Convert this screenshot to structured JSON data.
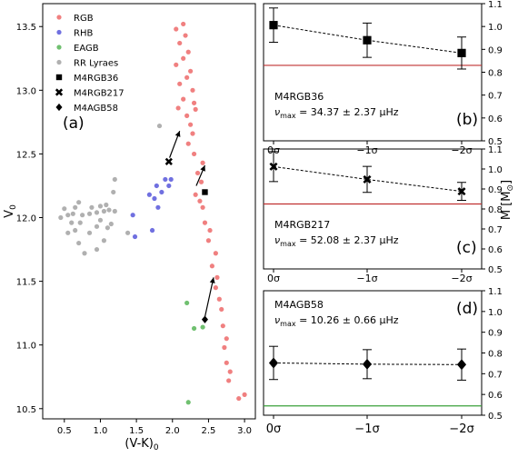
{
  "chart_data": [
    {
      "panel": "(a)",
      "type": "scatter",
      "xlabel": "(V-K)",
      "xlabel_sub": "0",
      "ylabel": "V",
      "ylabel_sub": "0",
      "xlim": [
        0.2,
        3.15
      ],
      "ylim": [
        13.68,
        10.42
      ],
      "y_inverted": true,
      "xticks": [
        0.5,
        1.0,
        1.5,
        2.0,
        2.5,
        3.0
      ],
      "xtick_labels": [
        "0.5",
        "1.0",
        "1.5",
        "2.0",
        "2.5",
        "3.0"
      ],
      "yticks": [
        10.5,
        11.0,
        11.5,
        12.0,
        12.5,
        13.0,
        13.5
      ],
      "ytick_labels": [
        "10.5",
        "11.0",
        "11.5",
        "12.0",
        "12.5",
        "13.0",
        "13.5"
      ],
      "legend_position": "top-left",
      "series": [
        {
          "name": "RGB",
          "marker": "dot",
          "color": "#f08080",
          "points": [
            [
              2.92,
              10.58
            ],
            [
              3.0,
              10.61
            ],
            [
              2.78,
              10.72
            ],
            [
              2.8,
              10.79
            ],
            [
              2.75,
              10.86
            ],
            [
              2.72,
              10.98
            ],
            [
              2.75,
              11.05
            ],
            [
              2.7,
              11.15
            ],
            [
              2.68,
              11.28
            ],
            [
              2.65,
              11.36
            ],
            [
              2.6,
              11.45
            ],
            [
              2.62,
              11.53
            ],
            [
              2.55,
              11.62
            ],
            [
              2.6,
              11.72
            ],
            [
              2.5,
              11.82
            ],
            [
              2.52,
              11.9
            ],
            [
              2.45,
              11.96
            ],
            [
              2.42,
              12.08
            ],
            [
              2.38,
              12.13
            ],
            [
              2.32,
              12.18
            ],
            [
              2.4,
              12.28
            ],
            [
              2.35,
              12.35
            ],
            [
              2.42,
              12.43
            ],
            [
              2.3,
              12.5
            ],
            [
              2.22,
              12.58
            ],
            [
              2.28,
              12.66
            ],
            [
              2.25,
              12.73
            ],
            [
              2.2,
              12.8
            ],
            [
              2.32,
              12.85
            ],
            [
              2.08,
              12.86
            ],
            [
              2.3,
              12.9
            ],
            [
              2.15,
              12.93
            ],
            [
              2.28,
              13.0
            ],
            [
              2.1,
              13.05
            ],
            [
              2.2,
              13.1
            ],
            [
              2.25,
              13.15
            ],
            [
              2.05,
              13.2
            ],
            [
              2.15,
              13.25
            ],
            [
              2.22,
              13.3
            ],
            [
              2.1,
              13.37
            ],
            [
              2.18,
              13.43
            ],
            [
              2.05,
              13.48
            ],
            [
              2.15,
              13.52
            ]
          ]
        },
        {
          "name": "RHB",
          "marker": "dot",
          "color": "#7070e0",
          "points": [
            [
              1.48,
              11.85
            ],
            [
              1.72,
              11.9
            ],
            [
              1.45,
              12.02
            ],
            [
              1.8,
              12.08
            ],
            [
              1.75,
              12.15
            ],
            [
              1.68,
              12.18
            ],
            [
              1.85,
              12.2
            ],
            [
              1.78,
              12.25
            ],
            [
              1.95,
              12.25
            ],
            [
              1.9,
              12.3
            ],
            [
              1.98,
              12.3
            ]
          ]
        },
        {
          "name": "EAGB",
          "marker": "dot",
          "color": "#70c070",
          "points": [
            [
              2.22,
              10.55
            ],
            [
              2.3,
              11.13
            ],
            [
              2.42,
              11.14
            ],
            [
              2.2,
              11.33
            ]
          ]
        },
        {
          "name": "RR Lyraes",
          "marker": "dot",
          "color": "#b0b0b0",
          "points": [
            [
              0.78,
              11.72
            ],
            [
              0.95,
              11.75
            ],
            [
              0.7,
              11.8
            ],
            [
              1.05,
              11.82
            ],
            [
              0.55,
              11.88
            ],
            [
              0.65,
              11.9
            ],
            [
              0.85,
              11.88
            ],
            [
              0.95,
              11.93
            ],
            [
              1.1,
              11.92
            ],
            [
              0.6,
              11.96
            ],
            [
              0.72,
              11.96
            ],
            [
              1.0,
              11.98
            ],
            [
              1.15,
              11.95
            ],
            [
              0.45,
              12.0
            ],
            [
              0.55,
              12.02
            ],
            [
              0.62,
              12.03
            ],
            [
              0.75,
              12.02
            ],
            [
              0.85,
              12.03
            ],
            [
              0.95,
              12.04
            ],
            [
              1.05,
              12.05
            ],
            [
              1.12,
              12.06
            ],
            [
              1.2,
              12.05
            ],
            [
              0.5,
              12.07
            ],
            [
              0.65,
              12.08
            ],
            [
              0.88,
              12.08
            ],
            [
              1.0,
              12.09
            ],
            [
              1.08,
              12.1
            ],
            [
              0.7,
              12.12
            ],
            [
              1.38,
              11.88
            ],
            [
              1.18,
              12.2
            ],
            [
              1.2,
              12.3
            ],
            [
              1.82,
              12.72
            ]
          ]
        },
        {
          "name": "M4RGB36",
          "marker": "square",
          "color": "#000000",
          "points": [
            [
              2.45,
              12.2
            ]
          ]
        },
        {
          "name": "M4RGB217",
          "marker": "cross",
          "color": "#000000",
          "points": [
            [
              1.95,
              12.44
            ]
          ]
        },
        {
          "name": "M4AGB58",
          "marker": "diamond",
          "color": "#000000",
          "points": [
            [
              2.45,
              11.2
            ]
          ]
        }
      ],
      "arrows": [
        {
          "from": [
            2.45,
            11.22
          ],
          "to": [
            2.57,
            11.53
          ]
        },
        {
          "from": [
            2.33,
            12.25
          ],
          "to": [
            2.45,
            12.41
          ]
        },
        {
          "from": [
            1.96,
            12.47
          ],
          "to": [
            2.1,
            12.68
          ]
        }
      ]
    },
    {
      "panel": "(b)",
      "type": "line",
      "star": "M4RGB36",
      "numax_symbol": "ν",
      "numax_sub": "max",
      "numax_value": "= 34.37 ± 2.37 μHz",
      "marker": "square",
      "categories": [
        "0σ",
        "−1σ",
        "−2σ"
      ],
      "values": [
        1.006,
        0.94,
        0.884
      ],
      "errors": [
        0.075,
        0.075,
        0.07
      ],
      "reference_line": {
        "value": 0.83,
        "color": "#c03030"
      },
      "ylim": [
        0.5,
        1.1
      ],
      "yticks": [
        0.5,
        0.6,
        0.7,
        0.8,
        0.9,
        1.0,
        1.1
      ],
      "ytick_labels": [
        "0.5",
        "0.6",
        "0.7",
        "0.8",
        "0.9",
        "1.0",
        "1.1"
      ],
      "ylabel": "M [M",
      "ylabel_sym": "⊙",
      "ylabel_end": "]",
      "show_ylabel": false
    },
    {
      "panel": "(c)",
      "type": "line",
      "star": "M4RGB217",
      "numax_symbol": "ν",
      "numax_sub": "max",
      "numax_value": "= 52.08 ± 2.37 μHz",
      "marker": "cross",
      "categories": [
        "0σ",
        "−1σ",
        "−2σ"
      ],
      "values": [
        1.012,
        0.948,
        0.888
      ],
      "errors": [
        0.075,
        0.065,
        0.045
      ],
      "reference_line": {
        "value": 0.825,
        "color": "#c03030"
      },
      "ylim": [
        0.5,
        1.1
      ],
      "yticks": [
        0.5,
        0.6,
        0.7,
        0.8,
        0.9,
        1.0,
        1.1
      ],
      "ytick_labels": [
        "0.5",
        "0.6",
        "0.7",
        "0.8",
        "0.9",
        "1.0",
        "1.1"
      ],
      "ylabel": "M [M",
      "ylabel_sym": "⊙",
      "ylabel_end": "]",
      "show_ylabel": true
    },
    {
      "panel": "(d)",
      "type": "line",
      "star": "M4AGB58",
      "numax_symbol": "ν",
      "numax_sub": "max",
      "numax_value": "= 10.26 ± 0.66 μHz",
      "marker": "diamond",
      "categories": [
        "0σ",
        "−1σ",
        "−2σ"
      ],
      "values": [
        0.752,
        0.746,
        0.744
      ],
      "errors": [
        0.08,
        0.07,
        0.075
      ],
      "reference_line": {
        "value": 0.545,
        "color": "#3aa03a"
      },
      "ylim": [
        0.5,
        1.1
      ],
      "yticks": [
        0.5,
        0.6,
        0.7,
        0.8,
        0.9,
        1.0,
        1.1
      ],
      "ytick_labels": [
        "0.5",
        "0.6",
        "0.7",
        "0.8",
        "0.9",
        "1.0",
        "1.1"
      ],
      "ylabel": "M [M",
      "ylabel_sym": "⊙",
      "ylabel_end": "]",
      "show_ylabel": false,
      "show_xticklabels": true
    }
  ]
}
